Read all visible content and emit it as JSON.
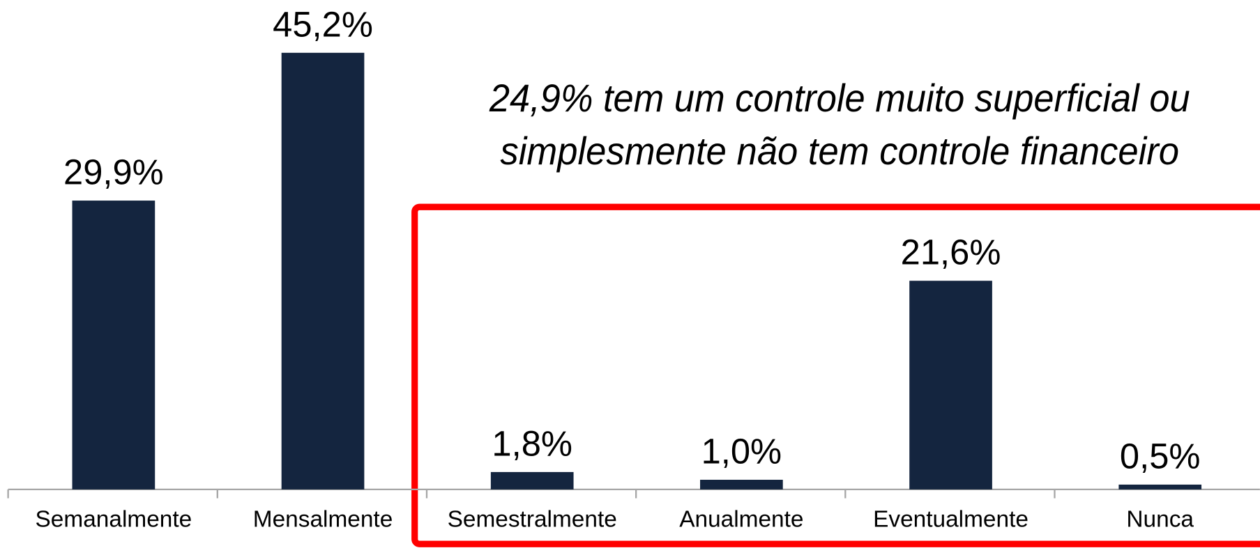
{
  "chart_data": {
    "type": "bar",
    "categories": [
      "Semanalmente",
      "Mensalmente",
      "Semestralmente",
      "Anualmente",
      "Eventualmente",
      "Nunca"
    ],
    "values": [
      29.9,
      45.2,
      1.8,
      1.0,
      21.6,
      0.5
    ],
    "value_labels": [
      "29,9%",
      "45,2%",
      "1,8%",
      "1,0%",
      "21,6%",
      "0,5%"
    ],
    "color": "#14253f",
    "annotations": [
      "24,9% tem um controle muito superficial ou",
      "simplesmente não tem controle financeiro"
    ],
    "highlight_color": "#ff0000",
    "grid": false
  }
}
